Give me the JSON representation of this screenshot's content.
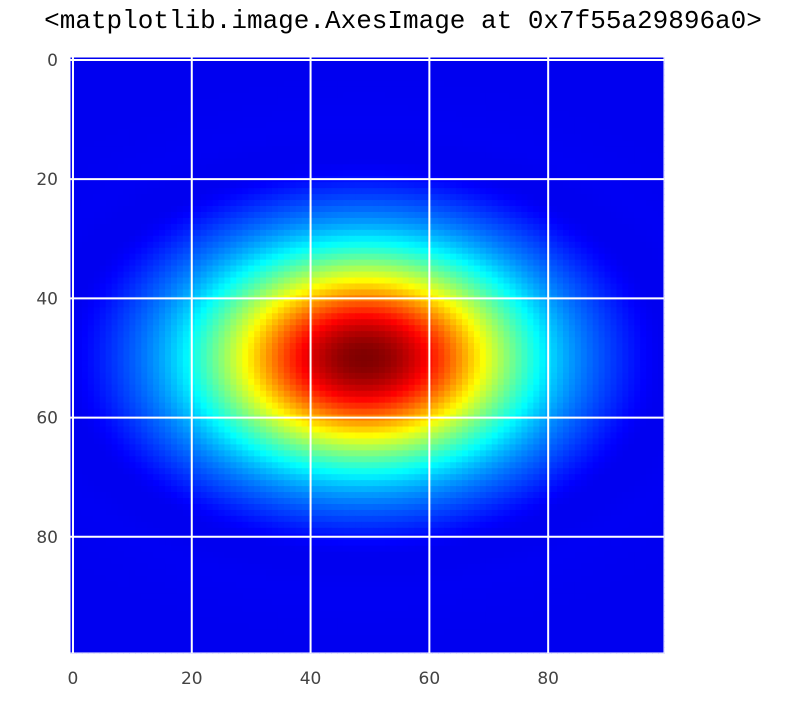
{
  "output_text": "<matplotlib.image.AxesImage at 0x7f55a29896a0>",
  "chart_data": {
    "type": "heatmap",
    "colormap": "jet",
    "image_size": [
      100,
      100
    ],
    "xlim": [
      -0.5,
      99.5
    ],
    "ylim": [
      99.5,
      -0.5
    ],
    "origin": "upper",
    "grid": true,
    "grid_color": "#ffffff",
    "xticks": [
      0,
      20,
      40,
      60,
      80
    ],
    "yticks": [
      0,
      20,
      40,
      60,
      80
    ],
    "xtick_labels": [
      "0",
      "20",
      "40",
      "60",
      "80"
    ],
    "ytick_labels": [
      "0",
      "20",
      "40",
      "60",
      "80"
    ],
    "peak": {
      "x": 49,
      "y": 50
    },
    "spread": {
      "x": 19,
      "y": 12.5
    },
    "xlabel": "",
    "ylabel": "",
    "title": ""
  }
}
